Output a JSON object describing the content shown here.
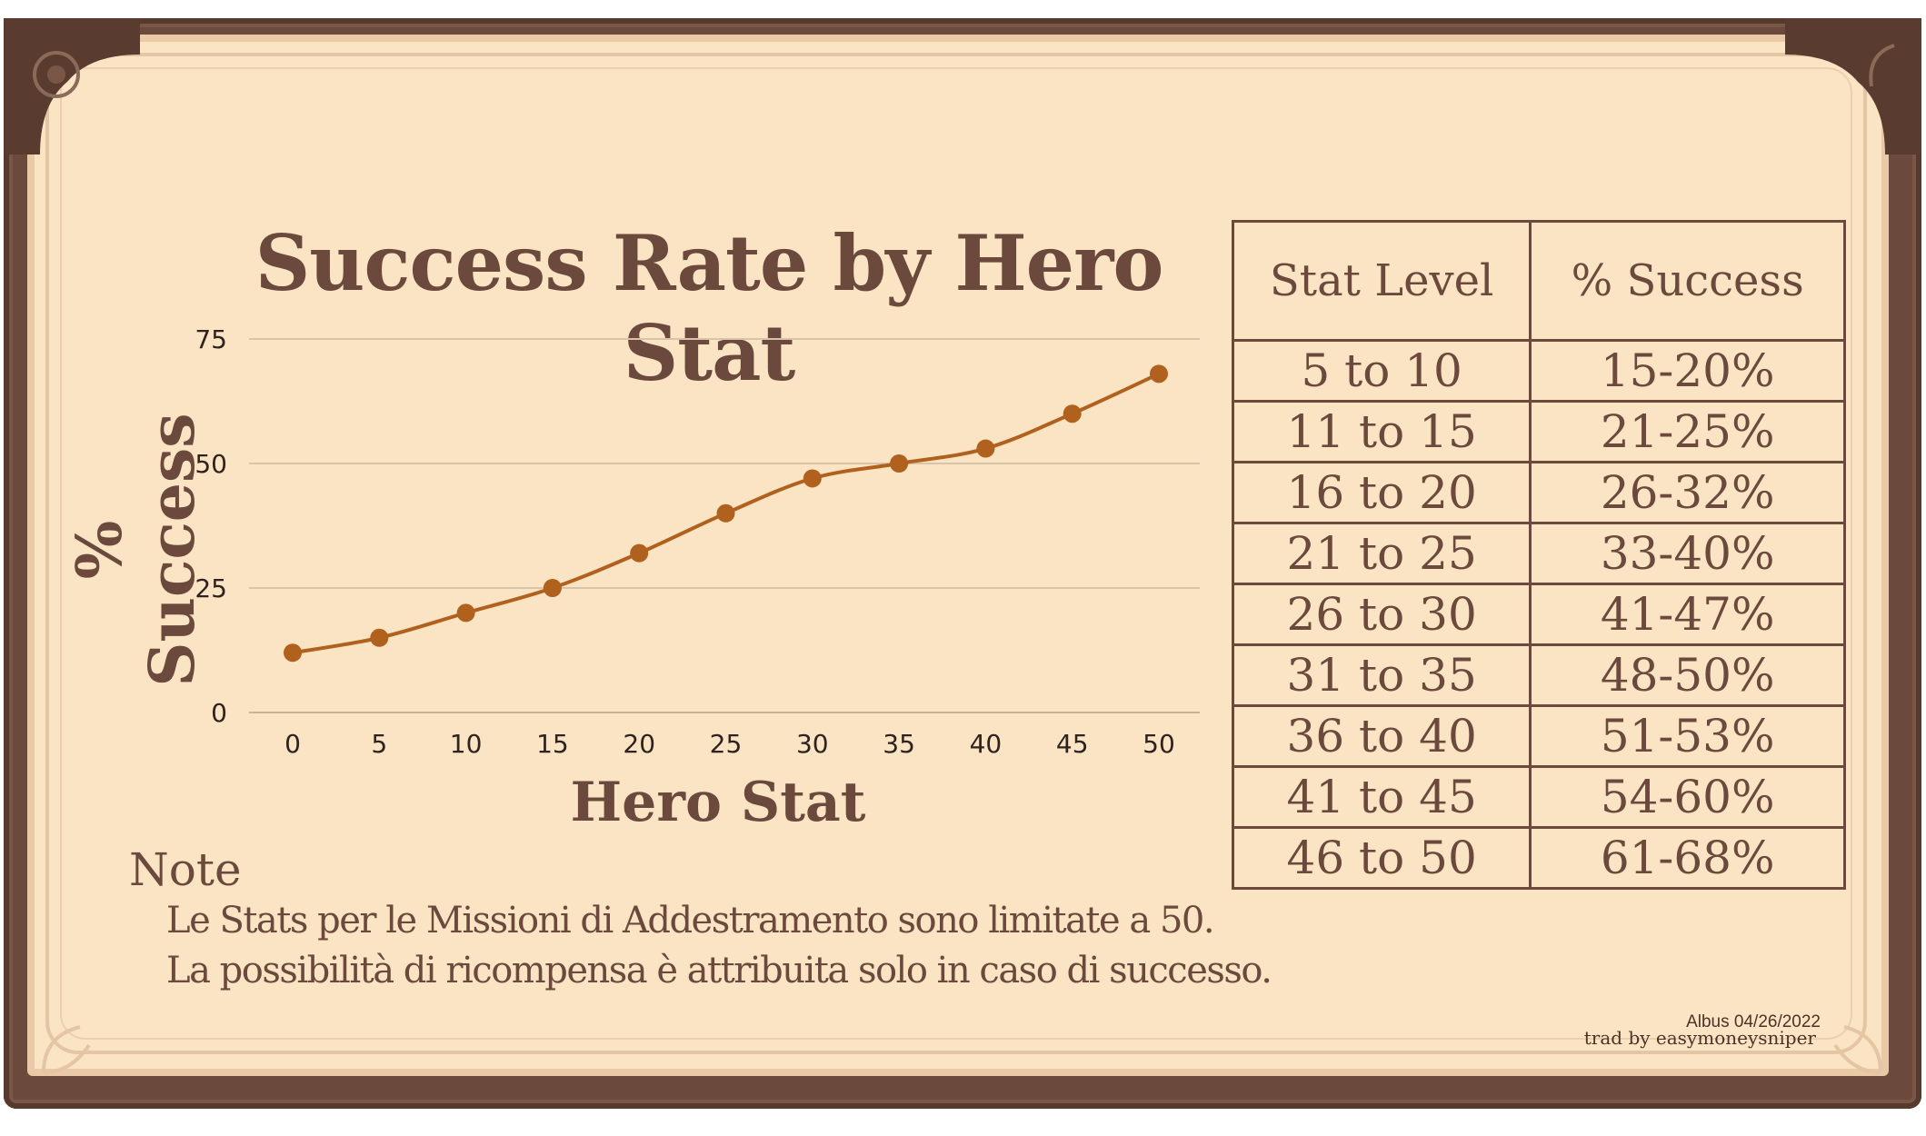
{
  "colors": {
    "frame": "#6b4a3d",
    "parchment": "#fae4c3",
    "text": "#6b4a3d",
    "line": "#b0611e",
    "gridline": "#d8c4a8"
  },
  "chart_data": {
    "type": "line",
    "title": "Success Rate by Hero Stat",
    "xlabel": "Hero Stat",
    "ylabel": "% Success",
    "x": [
      0,
      5,
      10,
      15,
      20,
      25,
      30,
      35,
      40,
      45,
      50
    ],
    "y": [
      12,
      15,
      20,
      25,
      32,
      40,
      47,
      50,
      53,
      60,
      68
    ],
    "xticks": [
      "0",
      "5",
      "10",
      "15",
      "20",
      "25",
      "30",
      "35",
      "40",
      "45",
      "50"
    ],
    "yticks": [
      "0",
      "25",
      "50",
      "75"
    ],
    "ylim": [
      0,
      75
    ],
    "grid": true,
    "legend": "none"
  },
  "table": {
    "headers": [
      "Stat Level",
      "% Success"
    ],
    "rows": [
      [
        "5 to 10",
        "15-20%"
      ],
      [
        "11 to 15",
        "21-25%"
      ],
      [
        "16 to 20",
        "26-32%"
      ],
      [
        "21 to 25",
        "33-40%"
      ],
      [
        "26 to 30",
        "41-47%"
      ],
      [
        "31 to 35",
        "48-50%"
      ],
      [
        "36 to 40",
        "51-53%"
      ],
      [
        "41 to 45",
        "54-60%"
      ],
      [
        "46 to 50",
        "61-68%"
      ]
    ]
  },
  "note": {
    "title": "Note",
    "lines": [
      "Le Stats per le Missioni di Addestramento sono limitate a 50.",
      "La possibilità di ricompensa è attribuita solo in caso di successo."
    ]
  },
  "credits": {
    "author": "Albus 04/26/2022",
    "translator": "trad by easymoneysniper"
  }
}
